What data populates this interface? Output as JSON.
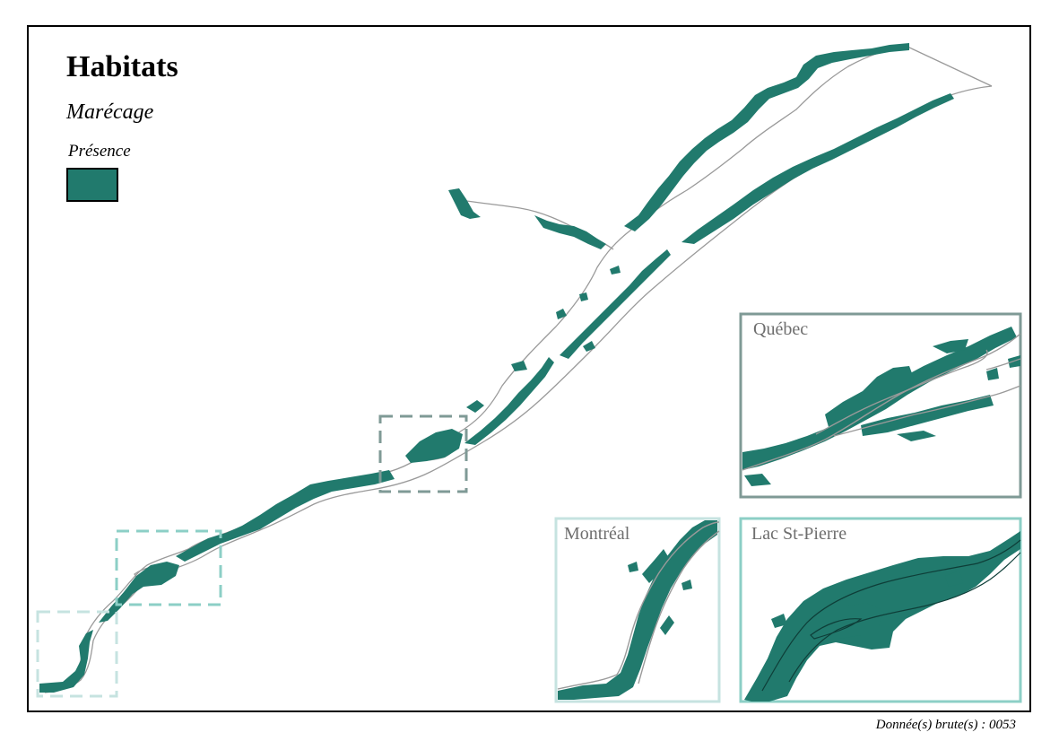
{
  "map": {
    "title": "Habitats",
    "subtitle": "Marécage",
    "legend": {
      "label": "Présence",
      "color": "#217a6d"
    },
    "insets": [
      {
        "name": "Québec",
        "border_color": "#7f9a96"
      },
      {
        "name": "Montréal",
        "border_color": "#c6e3e0"
      },
      {
        "name": "Lac St-Pierre",
        "border_color": "#8ccfc6"
      }
    ],
    "footer": "Donnée(s) brute(s) : 0053",
    "colors": {
      "habitat": "#217a6d",
      "river_outline": "#9a9a9a",
      "frame": "#000000"
    }
  }
}
